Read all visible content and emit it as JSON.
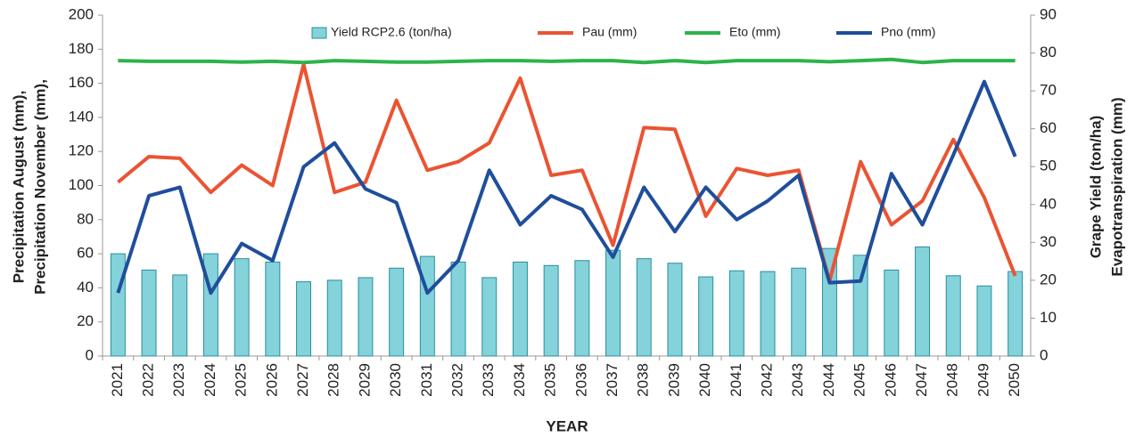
{
  "chart_data": {
    "type": "bar_line",
    "x_label": "YEAR",
    "y_label": [
      "Precipitation August (mm),",
      "Precipitation November (mm),"
    ],
    "y2_label": [
      "Grape Yield (ton/ha)",
      "Evapotranspiration (mm)"
    ],
    "categories": [
      "2021",
      "2022",
      "2023",
      "2024",
      "2025",
      "2026",
      "2027",
      "2028",
      "2029",
      "2030",
      "2031",
      "2032",
      "2033",
      "2034",
      "2035",
      "2036",
      "2037",
      "2038",
      "2039",
      "2040",
      "2041",
      "2042",
      "2043",
      "2044",
      "2045",
      "2046",
      "2047",
      "2048",
      "2049",
      "2050"
    ],
    "ylim": [
      0,
      200
    ],
    "yticks": [
      0,
      20,
      40,
      60,
      80,
      100,
      120,
      140,
      160,
      180,
      200
    ],
    "y2lim": [
      0,
      90
    ],
    "y2ticks": [
      0,
      10,
      20,
      30,
      40,
      50,
      60,
      70,
      80,
      90
    ],
    "series": [
      {
        "name": "Yield RCP2.6 (ton/ha)",
        "type": "bar",
        "axis": "y2",
        "color": "#84d2da",
        "edge": "#2a8fa0",
        "values": [
          27,
          22.7,
          21.4,
          27,
          25.7,
          24.8,
          19.6,
          20,
          20.7,
          23.2,
          26.3,
          24.8,
          20.7,
          24.8,
          23.9,
          25.2,
          27.9,
          25.7,
          24.5,
          20.9,
          22.5,
          22.3,
          23.2,
          28.4,
          26.6,
          22.7,
          28.8,
          21.2,
          18.5,
          22.3
        ]
      },
      {
        "name": "Pau (mm)",
        "type": "line",
        "color": "#ea5433",
        "values": [
          102,
          117,
          116,
          96,
          112,
          100,
          171,
          96,
          102,
          150,
          109,
          114,
          125,
          163,
          106,
          109,
          65,
          134,
          133,
          82,
          110,
          106,
          109,
          44,
          114,
          77,
          91,
          127,
          93,
          47
        ]
      },
      {
        "name": "Eto (mm)",
        "type": "line",
        "axis": "y2",
        "color": "#2db34a",
        "values": [
          78,
          77.8,
          77.8,
          77.8,
          77.6,
          77.8,
          77.5,
          78,
          77.8,
          77.6,
          77.6,
          77.8,
          78,
          78,
          77.8,
          78,
          78,
          77.5,
          78,
          77.5,
          78,
          78,
          78,
          77.7,
          78,
          78.3,
          77.5,
          78,
          78,
          78
        ]
      },
      {
        "name": "Pno (mm)",
        "type": "line",
        "color": "#1f4e9b",
        "values": [
          37,
          94,
          99,
          37,
          66,
          56,
          111,
          125,
          98,
          90,
          37,
          56,
          109,
          77,
          94,
          86,
          58,
          99,
          73,
          99,
          80,
          91,
          106,
          43,
          44,
          107,
          77,
          118,
          161,
          117
        ]
      }
    ]
  }
}
